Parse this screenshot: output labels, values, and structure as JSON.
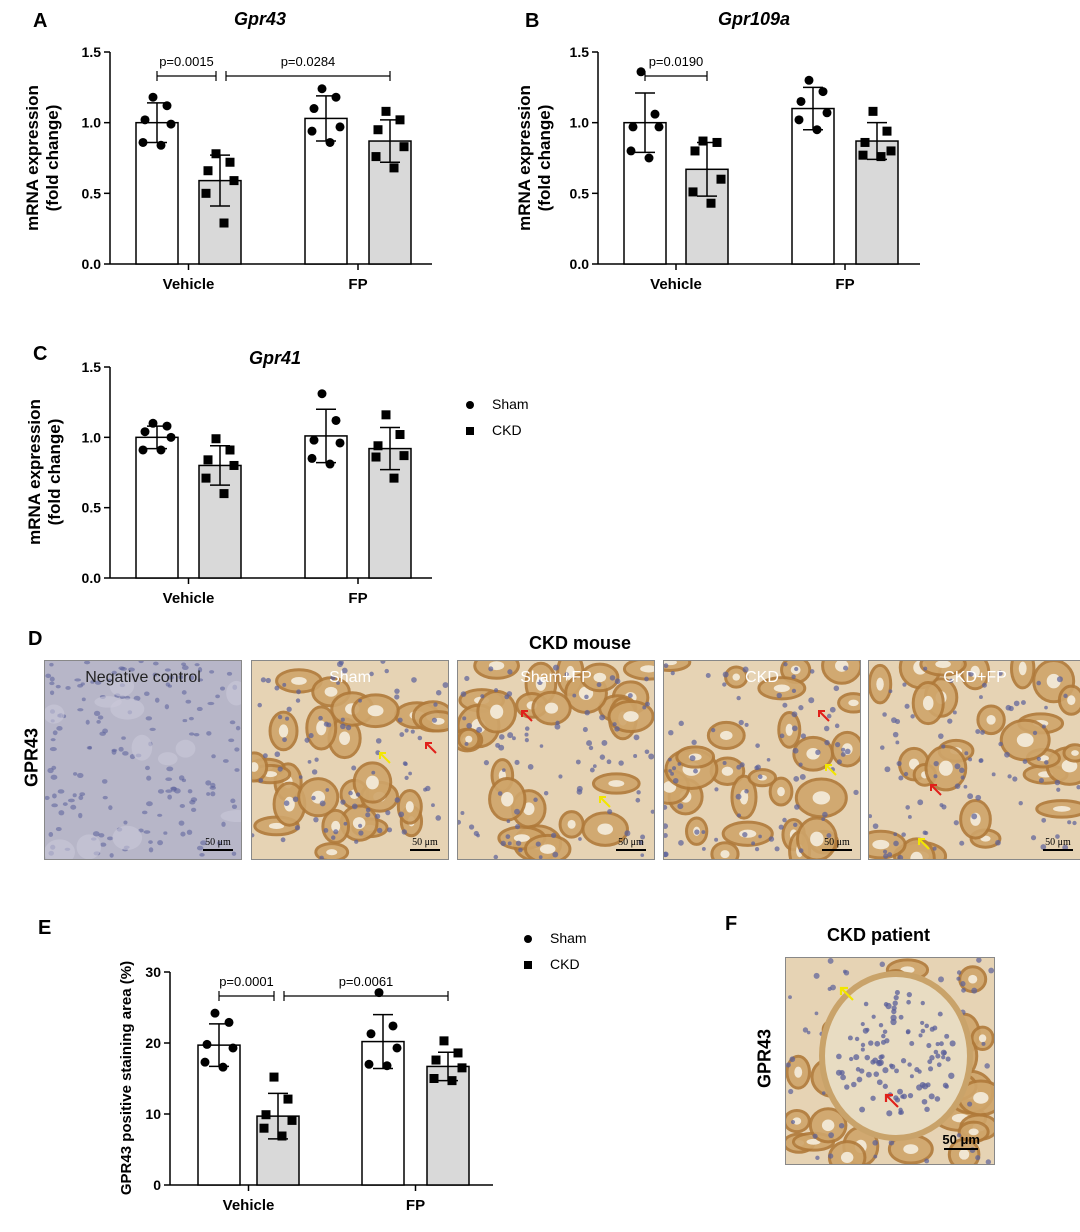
{
  "panels": {
    "A": "A",
    "B": "B",
    "C": "C",
    "D": "D",
    "E": "E",
    "F": "F"
  },
  "legend": {
    "sham": "Sham",
    "ckd": "CKD"
  },
  "chart_data": [
    {
      "id": "A",
      "type": "bar",
      "title": "Gpr43",
      "ylabel": "mRNA expression (fold change)",
      "ylabel_lines": [
        "mRNA expression",
        "(fold change)"
      ],
      "ylim": [
        0,
        1.5
      ],
      "yticks": [
        "0.0",
        "0.5",
        "1.0",
        "1.5"
      ],
      "ytick_values": [
        0,
        0.5,
        1.0,
        1.5
      ],
      "categories": [
        "Vehicle",
        "FP"
      ],
      "series": [
        {
          "name": "Sham",
          "values": [
            1.0,
            1.03
          ],
          "sd": [
            0.14,
            0.16
          ],
          "points": [
            [
              1.18,
              1.12,
              1.02,
              0.99,
              0.86,
              0.84
            ],
            [
              1.24,
              1.18,
              1.1,
              0.97,
              0.94,
              0.86
            ]
          ]
        },
        {
          "name": "CKD",
          "values": [
            0.59,
            0.87
          ],
          "sd": [
            0.18,
            0.15
          ],
          "points": [
            [
              0.78,
              0.72,
              0.66,
              0.59,
              0.5,
              0.29
            ],
            [
              1.08,
              1.02,
              0.95,
              0.83,
              0.76,
              0.68
            ]
          ]
        }
      ],
      "brackets": [
        {
          "label": "p=0.0015",
          "from": [
            0,
            0
          ],
          "to": [
            0,
            1
          ]
        },
        {
          "label": "p=0.0284",
          "from": [
            0,
            1
          ],
          "to": [
            1,
            1
          ]
        }
      ]
    },
    {
      "id": "B",
      "type": "bar",
      "title": "Gpr109a",
      "ylabel": "mRNA expression (fold change)",
      "ylabel_lines": [
        "mRNA expression",
        "(fold change)"
      ],
      "ylim": [
        0,
        1.5
      ],
      "yticks": [
        "0.0",
        "0.5",
        "1.0",
        "1.5"
      ],
      "ytick_values": [
        0,
        0.5,
        1.0,
        1.5
      ],
      "categories": [
        "Vehicle",
        "FP"
      ],
      "series": [
        {
          "name": "Sham",
          "values": [
            1.0,
            1.1
          ],
          "sd": [
            0.21,
            0.15
          ],
          "points": [
            [
              1.36,
              1.06,
              0.97,
              0.97,
              0.8,
              0.75
            ],
            [
              1.3,
              1.22,
              1.15,
              1.07,
              1.02,
              0.95
            ]
          ]
        },
        {
          "name": "CKD",
          "values": [
            0.67,
            0.87
          ],
          "sd": [
            0.19,
            0.13
          ],
          "points": [
            [
              0.87,
              0.86,
              0.8,
              0.6,
              0.51,
              0.43
            ],
            [
              1.08,
              0.94,
              0.86,
              0.8,
              0.77,
              0.76
            ]
          ]
        }
      ],
      "brackets": [
        {
          "label": "p=0.0190",
          "from": [
            0,
            0
          ],
          "to": [
            0,
            1
          ]
        }
      ]
    },
    {
      "id": "C",
      "type": "bar",
      "title": "Gpr41",
      "ylabel": "mRNA expression (fold change)",
      "ylabel_lines": [
        "mRNA expression",
        "(fold change)"
      ],
      "ylim": [
        0,
        1.5
      ],
      "yticks": [
        "0.0",
        "0.5",
        "1.0",
        "1.5"
      ],
      "ytick_values": [
        0,
        0.5,
        1.0,
        1.5
      ],
      "categories": [
        "Vehicle",
        "FP"
      ],
      "series": [
        {
          "name": "Sham",
          "values": [
            1.0,
            1.01
          ],
          "sd": [
            0.08,
            0.19
          ],
          "points": [
            [
              1.1,
              1.08,
              1.04,
              1.0,
              0.91,
              0.91
            ],
            [
              1.31,
              1.12,
              0.98,
              0.96,
              0.85,
              0.81
            ]
          ]
        },
        {
          "name": "CKD",
          "values": [
            0.8,
            0.92
          ],
          "sd": [
            0.14,
            0.15
          ],
          "points": [
            [
              0.99,
              0.91,
              0.84,
              0.8,
              0.71,
              0.6
            ],
            [
              1.16,
              1.02,
              0.94,
              0.87,
              0.86,
              0.71
            ]
          ]
        }
      ],
      "brackets": []
    },
    {
      "id": "E",
      "type": "bar",
      "title": "",
      "ylabel": "GPR43 positive staining area (%)",
      "ylabel_lines": [
        "GPR43 positive staining area (%)"
      ],
      "ylim": [
        0,
        30
      ],
      "yticks": [
        "0",
        "10",
        "20",
        "30"
      ],
      "ytick_values": [
        0,
        10,
        20,
        30
      ],
      "categories": [
        "Vehicle",
        "FP"
      ],
      "series": [
        {
          "name": "Sham",
          "values": [
            19.7,
            20.2
          ],
          "sd": [
            3.0,
            3.8
          ],
          "points": [
            [
              24.2,
              22.9,
              19.8,
              19.3,
              17.3,
              16.6
            ],
            [
              27.1,
              22.4,
              21.3,
              19.3,
              17.0,
              16.8
            ]
          ]
        },
        {
          "name": "CKD",
          "values": [
            9.7,
            16.7
          ],
          "sd": [
            3.2,
            2.0
          ],
          "points": [
            [
              15.2,
              12.1,
              9.9,
              9.1,
              8.0,
              6.9
            ],
            [
              20.3,
              18.6,
              17.6,
              16.5,
              15.0,
              14.7
            ]
          ]
        }
      ],
      "brackets": [
        {
          "label": "p=0.0001",
          "from": [
            0,
            0
          ],
          "to": [
            0,
            1
          ]
        },
        {
          "label": "p=0.0061",
          "from": [
            0,
            1
          ],
          "to": [
            1,
            1
          ]
        }
      ]
    }
  ],
  "panel_d": {
    "title": "CKD mouse",
    "row_label": "GPR43",
    "scale": "50 μm",
    "images": [
      {
        "label": "Negative control",
        "kind": "negative"
      },
      {
        "label": "Sham",
        "kind": "stain"
      },
      {
        "label": "Sham+FP",
        "kind": "stain"
      },
      {
        "label": "CKD",
        "kind": "stain"
      },
      {
        "label": "CKD+FP",
        "kind": "stain"
      }
    ]
  },
  "panel_f": {
    "title": "CKD patient",
    "row_label": "GPR43",
    "scale": "50 μm"
  },
  "colors": {
    "sham_fill": "#ffffff",
    "ckd_fill": "#d9d9d9",
    "stain_tissue": "#cfa56a",
    "negative_tissue": "#b7b6c8",
    "nuclei": "#5a5f9a",
    "yellow_arrow": "#f2e600",
    "red_arrow": "#e0201a"
  }
}
